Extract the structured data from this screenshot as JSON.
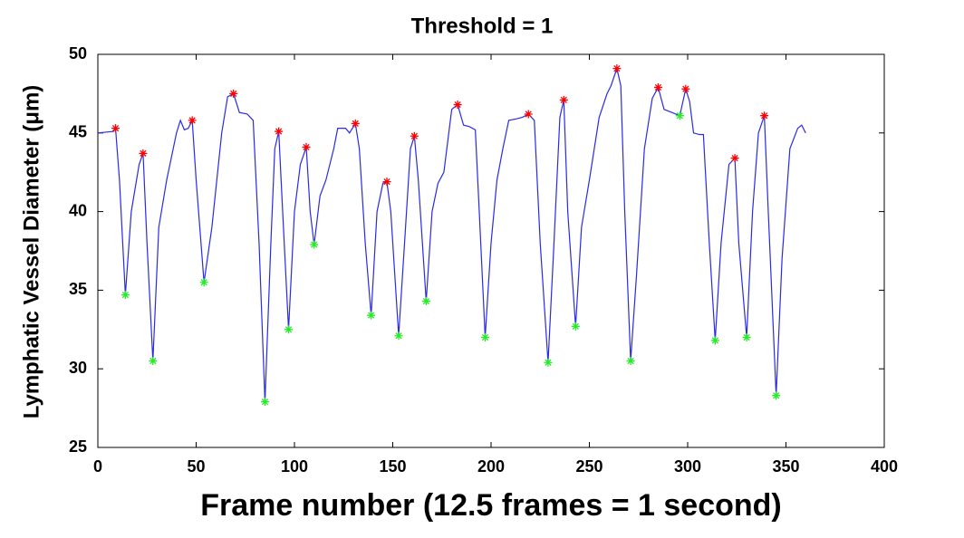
{
  "chart_data": {
    "type": "line",
    "title": "Threshold = 1",
    "xlabel": "Frame number (12.5 frames = 1 second)",
    "ylabel": "Lymphatic Vessel Diameter (μm)",
    "xlim": [
      0,
      400
    ],
    "xticks": [
      0,
      50,
      100,
      150,
      200,
      250,
      300,
      350,
      400
    ],
    "ylim": [
      25,
      50
    ],
    "yticks": [
      25,
      30,
      35,
      40,
      45,
      50
    ],
    "x": [
      0,
      8,
      9,
      11,
      14,
      17,
      21,
      23,
      25,
      28,
      31,
      35,
      40,
      42,
      44,
      46,
      48,
      50,
      54,
      58,
      63,
      66,
      69,
      72,
      76,
      79,
      82,
      85,
      88,
      90,
      92,
      94,
      97,
      100,
      103,
      106,
      108,
      110,
      113,
      116,
      120,
      122,
      126,
      128,
      131,
      133,
      136,
      139,
      142,
      145,
      147,
      149,
      153,
      156,
      159,
      161,
      163,
      167,
      170,
      173,
      176,
      180,
      183,
      186,
      189,
      192,
      194,
      197,
      200,
      203,
      206,
      209,
      213,
      216,
      219,
      222,
      225,
      229,
      232,
      235,
      237,
      239,
      243,
      246,
      250,
      255,
      259,
      261,
      264,
      266,
      268,
      271,
      274,
      278,
      282,
      285,
      288,
      292,
      296,
      299,
      301,
      303,
      306,
      308,
      311,
      314,
      317,
      321,
      324,
      326,
      330,
      333,
      336,
      339,
      341,
      345,
      348,
      352,
      356,
      358,
      360
    ],
    "series": [
      {
        "color": "#2a2ae8",
        "values": [
          45,
          45.1,
          45.3,
          42,
          34.7,
          40,
          43,
          43.7,
          38,
          30.5,
          39,
          42,
          45,
          45.8,
          45.2,
          45.3,
          45.8,
          42,
          35.5,
          39,
          45,
          47.3,
          47.5,
          46.3,
          46.2,
          45.8,
          38,
          27.9,
          38,
          44,
          45.1,
          40,
          32.5,
          40,
          43,
          44.1,
          40,
          37.9,
          41,
          42,
          44,
          45.3,
          45.3,
          45,
          45.6,
          44,
          38,
          33.4,
          40,
          41.8,
          41.9,
          40,
          32.1,
          38,
          44,
          44.8,
          42,
          34.3,
          40,
          41.8,
          42.5,
          46.5,
          46.8,
          45.5,
          45.4,
          45.2,
          40,
          32.0,
          38,
          42,
          44,
          45.8,
          45.9,
          46,
          46.2,
          45.8,
          38,
          30.4,
          38,
          46,
          47.1,
          40,
          32.7,
          39,
          42,
          46,
          47.5,
          48,
          49.1,
          48,
          40,
          30.5,
          36,
          44,
          47.2,
          47.9,
          46.5,
          46.3,
          46.1,
          47.8,
          47,
          45,
          44.9,
          44.9,
          38,
          31.8,
          38,
          43,
          43.4,
          38,
          32.0,
          40,
          45,
          46.1,
          40,
          28.3,
          37,
          44,
          45.3,
          45.5,
          45
        ]
      }
    ],
    "peaks": {
      "color": "#ff0000",
      "x": [
        9,
        23,
        48,
        69,
        92,
        106,
        131,
        147,
        161,
        183,
        219,
        237,
        264,
        285,
        299,
        324,
        339
      ],
      "values": [
        45.3,
        43.7,
        45.8,
        47.5,
        45.1,
        44.1,
        45.6,
        41.9,
        44.8,
        46.8,
        46.2,
        47.1,
        49.1,
        47.9,
        47.8,
        43.4,
        46.1
      ]
    },
    "troughs": {
      "color": "#22ee22",
      "x": [
        14,
        28,
        54,
        85,
        97,
        110,
        139,
        153,
        167,
        197,
        229,
        243,
        271,
        296,
        314,
        330,
        345
      ],
      "values": [
        34.7,
        30.5,
        35.5,
        27.9,
        32.5,
        37.9,
        33.4,
        32.1,
        34.3,
        32.0,
        30.4,
        32.7,
        30.5,
        46.1,
        31.8,
        32.0,
        28.3
      ]
    }
  }
}
